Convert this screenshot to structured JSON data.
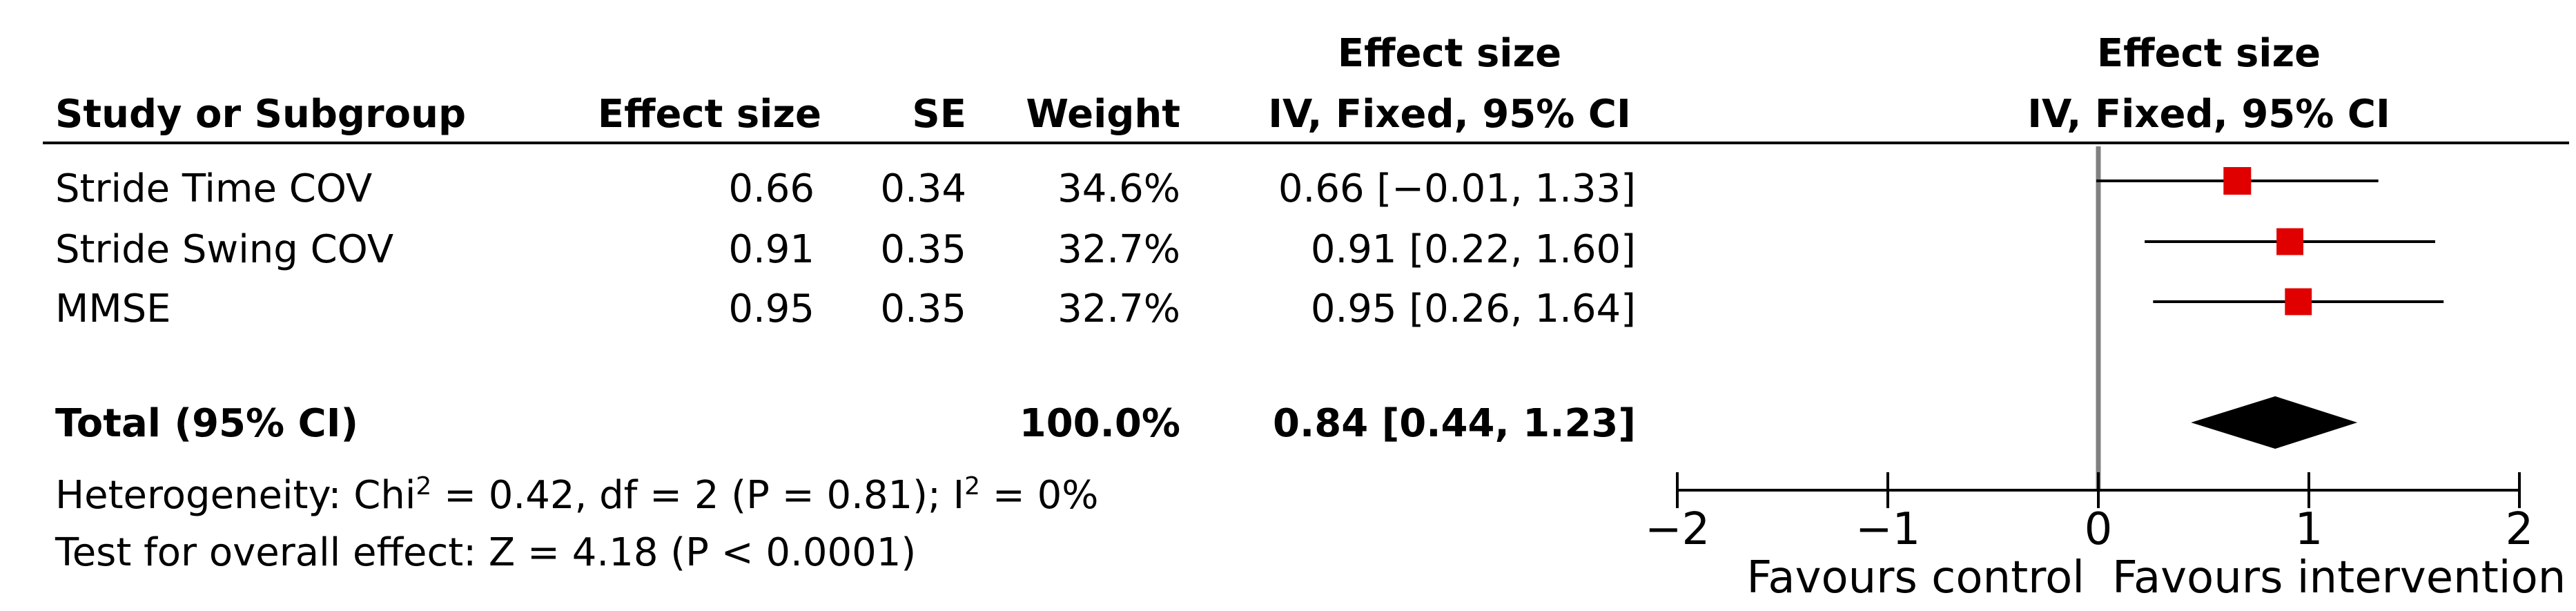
{
  "table": {
    "headers": {
      "study": "Study or Subgroup",
      "effect_size": "Effect size",
      "se": "SE",
      "weight": "Weight",
      "ci_top": "Effect size",
      "ci_bottom": "IV, Fixed, 95% CI"
    },
    "rows": [
      {
        "study": "Stride Time COV",
        "effect_size": "0.66",
        "se": "0.34",
        "weight": "34.6%",
        "ci": "0.66 [−0.01, 1.33]"
      },
      {
        "study": "Stride Swing COV",
        "effect_size": "0.91",
        "se": "0.35",
        "weight": "32.7%",
        "ci": "0.91 [0.22, 1.60]"
      },
      {
        "study": "MMSE",
        "effect_size": "0.95",
        "se": "0.35",
        "weight": "32.7%",
        "ci": "0.95 [0.26, 1.64]"
      }
    ],
    "total": {
      "label": "Total (95% CI)",
      "weight": "100.0%",
      "ci": "0.84 [0.44, 1.23]"
    },
    "heterogeneity_prefix": "Heterogeneity: Chi",
    "heterogeneity_sup1": "2",
    "heterogeneity_mid": " = 0.42, df = 2 (P = 0.81); I",
    "heterogeneity_sup2": "2",
    "heterogeneity_suffix": " = 0%",
    "overall_effect": "Test for overall effect: Z = 4.18 (P < 0.0001)"
  },
  "plot_header": {
    "top": "Effect size",
    "bottom": "IV, Fixed, 95% CI"
  },
  "chart_data": {
    "type": "forest",
    "xlim": [
      -2,
      2
    ],
    "ticks": [
      -2,
      -1,
      0,
      1,
      2
    ],
    "tick_labels": [
      "−2",
      "−1",
      "0",
      "1",
      "2"
    ],
    "xlabel_left": "Favours control",
    "xlabel_right": "Favours intervention",
    "studies": [
      {
        "label": "Stride Time COV",
        "estimate": 0.66,
        "lower": -0.01,
        "upper": 1.33,
        "weight": 34.6
      },
      {
        "label": "Stride Swing COV",
        "estimate": 0.91,
        "lower": 0.22,
        "upper": 1.6,
        "weight": 32.7
      },
      {
        "label": "MMSE",
        "estimate": 0.95,
        "lower": 0.26,
        "upper": 1.64,
        "weight": 32.7
      }
    ],
    "total": {
      "estimate": 0.84,
      "lower": 0.44,
      "upper": 1.23
    },
    "marker_color": "#e00000",
    "diamond_color": "#000000",
    "zero_line_color": "#808080"
  }
}
